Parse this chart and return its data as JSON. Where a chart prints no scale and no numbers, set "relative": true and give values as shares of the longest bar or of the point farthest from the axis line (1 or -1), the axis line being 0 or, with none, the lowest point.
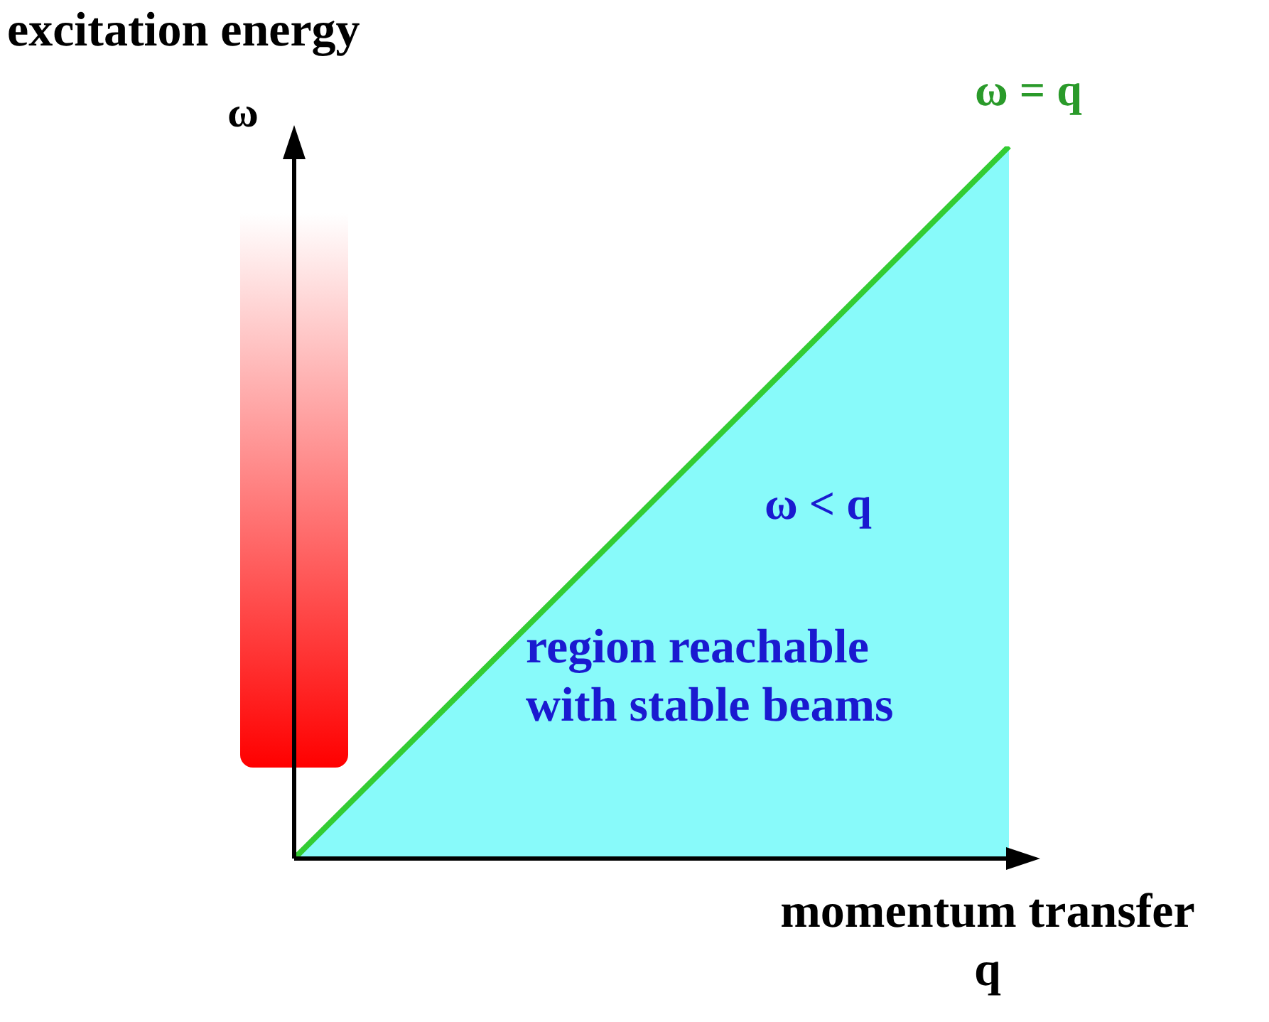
{
  "chart_data": {
    "type": "area",
    "relative": true,
    "title": "excitation energy",
    "ylabel": "ω",
    "xlabel": "momentum transfer\nq",
    "categories": [
      null,
      null,
      null
    ],
    "series": [
      {
        "type": "area",
        "color": "#88fafa",
        "values": [
          0,
          0.5,
          1
        ]
      }
    ],
    "annotations": [
      "ω = q",
      "ω < q",
      "region reachable\nwith stable beams"
    ],
    "legend": false,
    "grid": false,
    "marker": "none"
  }
}
